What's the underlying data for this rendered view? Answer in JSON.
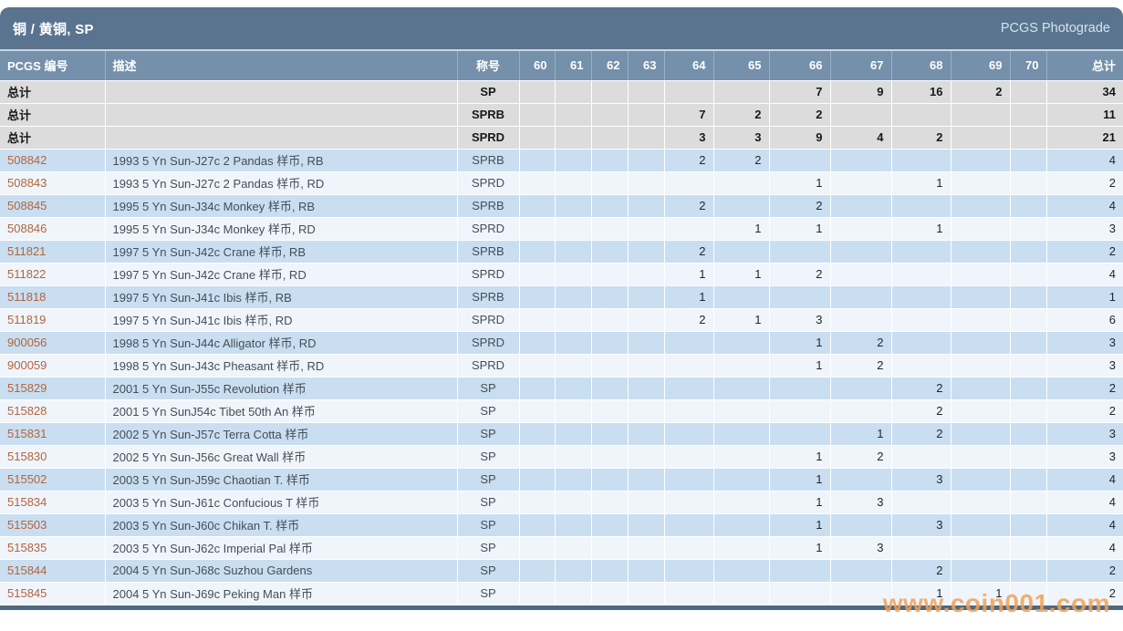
{
  "page": {
    "title": "铜 / 黄铜, SP",
    "brand": "PCGS Photograde",
    "watermark": "www.coin001.com"
  },
  "colors": {
    "titlebar": "#5a748f",
    "header_row": "#7590aa",
    "total_row_bg": "#dcdcdc",
    "row_odd_bg": "#c9def0",
    "row_even_bg": "#eff5fb",
    "link": "#b2653e",
    "watermark": "#f2a157",
    "bottom_bar": "#4d6880"
  },
  "table": {
    "headers": [
      "PCGS 编号",
      "描述",
      "称号",
      "60",
      "61",
      "62",
      "63",
      "64",
      "65",
      "66",
      "67",
      "68",
      "69",
      "70",
      "总计"
    ],
    "grade_labels": [
      "60",
      "61",
      "62",
      "63",
      "64",
      "65",
      "66",
      "67",
      "68",
      "69",
      "70"
    ],
    "total_rows": [
      {
        "label": "总计",
        "desc": "",
        "designation": "SP",
        "grades": [
          "",
          "",
          "",
          "",
          "",
          "",
          "7",
          "9",
          "16",
          "2",
          ""
        ],
        "total": "34"
      },
      {
        "label": "总计",
        "desc": "",
        "designation": "SPRB",
        "grades": [
          "",
          "",
          "",
          "",
          "7",
          "2",
          "2",
          "",
          "",
          "",
          ""
        ],
        "total": "11"
      },
      {
        "label": "总计",
        "desc": "",
        "designation": "SPRD",
        "grades": [
          "",
          "",
          "",
          "",
          "3",
          "3",
          "9",
          "4",
          "2",
          "",
          ""
        ],
        "total": "21"
      }
    ],
    "rows": [
      {
        "id": "508842",
        "desc": "1993 5 Yn Sun-J27c 2 Pandas 样币, RB",
        "designation": "SPRB",
        "grades": [
          "",
          "",
          "",
          "",
          "2",
          "2",
          "",
          "",
          "",
          "",
          ""
        ],
        "total": "4"
      },
      {
        "id": "508843",
        "desc": "1993 5 Yn Sun-J27c 2 Pandas 样币, RD",
        "designation": "SPRD",
        "grades": [
          "",
          "",
          "",
          "",
          "",
          "",
          "1",
          "",
          "1",
          "",
          ""
        ],
        "total": "2"
      },
      {
        "id": "508845",
        "desc": "1995 5 Yn Sun-J34c Monkey 样币, RB",
        "designation": "SPRB",
        "grades": [
          "",
          "",
          "",
          "",
          "2",
          "",
          "2",
          "",
          "",
          "",
          ""
        ],
        "total": "4"
      },
      {
        "id": "508846",
        "desc": "1995 5 Yn Sun-J34c Monkey 样币, RD",
        "designation": "SPRD",
        "grades": [
          "",
          "",
          "",
          "",
          "",
          "1",
          "1",
          "",
          "1",
          "",
          ""
        ],
        "total": "3"
      },
      {
        "id": "511821",
        "desc": "1997 5 Yn Sun-J42c Crane 样币, RB",
        "designation": "SPRB",
        "grades": [
          "",
          "",
          "",
          "",
          "2",
          "",
          "",
          "",
          "",
          "",
          ""
        ],
        "total": "2"
      },
      {
        "id": "511822",
        "desc": "1997 5 Yn Sun-J42c Crane 样币, RD",
        "designation": "SPRD",
        "grades": [
          "",
          "",
          "",
          "",
          "1",
          "1",
          "2",
          "",
          "",
          "",
          ""
        ],
        "total": "4"
      },
      {
        "id": "511818",
        "desc": "1997 5 Yn Sun-J41c Ibis 样币, RB",
        "designation": "SPRB",
        "grades": [
          "",
          "",
          "",
          "",
          "1",
          "",
          "",
          "",
          "",
          "",
          ""
        ],
        "total": "1"
      },
      {
        "id": "511819",
        "desc": "1997 5 Yn Sun-J41c Ibis 样币, RD",
        "designation": "SPRD",
        "grades": [
          "",
          "",
          "",
          "",
          "2",
          "1",
          "3",
          "",
          "",
          "",
          ""
        ],
        "total": "6"
      },
      {
        "id": "900056",
        "desc": "1998 5 Yn Sun-J44c Alligator 样币, RD",
        "designation": "SPRD",
        "grades": [
          "",
          "",
          "",
          "",
          "",
          "",
          "1",
          "2",
          "",
          "",
          ""
        ],
        "total": "3"
      },
      {
        "id": "900059",
        "desc": "1998 5 Yn Sun-J43c Pheasant 样币, RD",
        "designation": "SPRD",
        "grades": [
          "",
          "",
          "",
          "",
          "",
          "",
          "1",
          "2",
          "",
          "",
          ""
        ],
        "total": "3"
      },
      {
        "id": "515829",
        "desc": "2001 5 Yn Sun-J55c Revolution 样币",
        "designation": "SP",
        "grades": [
          "",
          "",
          "",
          "",
          "",
          "",
          "",
          "",
          "2",
          "",
          ""
        ],
        "total": "2"
      },
      {
        "id": "515828",
        "desc": "2001 5 Yn SunJ54c Tibet 50th An 样币",
        "designation": "SP",
        "grades": [
          "",
          "",
          "",
          "",
          "",
          "",
          "",
          "",
          "2",
          "",
          ""
        ],
        "total": "2"
      },
      {
        "id": "515831",
        "desc": "2002 5 Yn Sun-J57c Terra Cotta 样币",
        "designation": "SP",
        "grades": [
          "",
          "",
          "",
          "",
          "",
          "",
          "",
          "1",
          "2",
          "",
          ""
        ],
        "total": "3"
      },
      {
        "id": "515830",
        "desc": "2002 5 Yn Sun-J56c Great Wall 样币",
        "designation": "SP",
        "grades": [
          "",
          "",
          "",
          "",
          "",
          "",
          "1",
          "2",
          "",
          "",
          ""
        ],
        "total": "3"
      },
      {
        "id": "515502",
        "desc": "2003 5 Yn Sun-J59c Chaotian T. 样币",
        "designation": "SP",
        "grades": [
          "",
          "",
          "",
          "",
          "",
          "",
          "1",
          "",
          "3",
          "",
          ""
        ],
        "total": "4"
      },
      {
        "id": "515834",
        "desc": "2003 5 Yn Sun-J61c Confucious T 样币",
        "designation": "SP",
        "grades": [
          "",
          "",
          "",
          "",
          "",
          "",
          "1",
          "3",
          "",
          "",
          ""
        ],
        "total": "4"
      },
      {
        "id": "515503",
        "desc": "2003 5 Yn Sun-J60c Chikan T. 样币",
        "designation": "SP",
        "grades": [
          "",
          "",
          "",
          "",
          "",
          "",
          "1",
          "",
          "3",
          "",
          ""
        ],
        "total": "4"
      },
      {
        "id": "515835",
        "desc": "2003 5 Yn Sun-J62c Imperial Pal 样币",
        "designation": "SP",
        "grades": [
          "",
          "",
          "",
          "",
          "",
          "",
          "1",
          "3",
          "",
          "",
          ""
        ],
        "total": "4"
      },
      {
        "id": "515844",
        "desc": "2004 5 Yn Sun-J68c Suzhou Gardens",
        "designation": "SP",
        "grades": [
          "",
          "",
          "",
          "",
          "",
          "",
          "",
          "",
          "2",
          "",
          ""
        ],
        "total": "2"
      },
      {
        "id": "515845",
        "desc": "2004 5 Yn Sun-J69c Peking Man 样币",
        "designation": "SP",
        "grades": [
          "",
          "",
          "",
          "",
          "",
          "",
          "",
          "",
          "1",
          "1",
          ""
        ],
        "total": "2"
      }
    ]
  }
}
